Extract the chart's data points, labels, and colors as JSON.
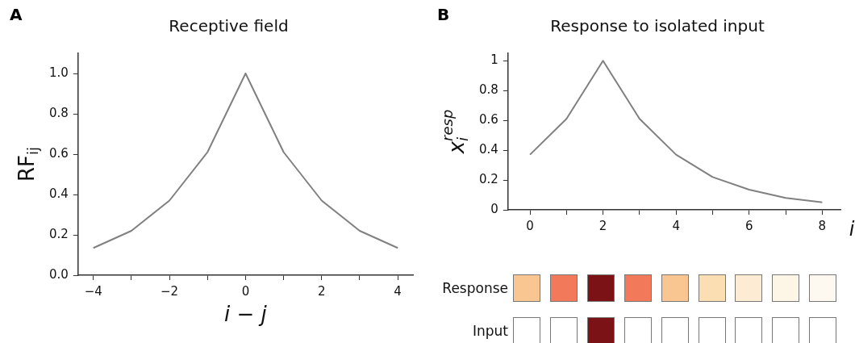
{
  "chart_data": [
    {
      "type": "line",
      "title": "Receptive field",
      "xlabel": "i − j",
      "ylabel": "RF$_{ij}$",
      "annotations": [
        "A"
      ],
      "x": [
        -4,
        -3,
        -2,
        -1,
        0,
        1,
        2,
        3,
        4
      ],
      "series": [
        {
          "color": "#808080",
          "values": [
            0.135,
            0.22,
            0.37,
            0.61,
            1.0,
            0.61,
            0.37,
            0.22,
            0.135
          ]
        }
      ],
      "xlim": [
        -4.4,
        4.4
      ],
      "xticks": [
        {
          "value": -4,
          "label": "−4"
        },
        {
          "value": -3,
          "label": null
        },
        {
          "value": -2,
          "label": "−2"
        },
        {
          "value": -1,
          "label": null
        },
        0,
        {
          "value": 1,
          "label": null
        },
        2,
        {
          "value": 3,
          "label": null
        },
        4
      ],
      "ylim": [
        0,
        1.1
      ],
      "yticks": [
        {
          "value": 0,
          "label": "0.0"
        },
        0.2,
        0.4,
        0.6,
        0.8,
        {
          "value": 1,
          "label": "1.0"
        }
      ],
      "grid": false,
      "marker": "none"
    },
    {
      "type": "line",
      "title": "Response to isolated input",
      "xlabel": "i",
      "ylabel": "x$_{i}$$^{resp}$",
      "annotations": [
        "B"
      ],
      "x": [
        0,
        1,
        2,
        3,
        4,
        5,
        6,
        7,
        8
      ],
      "series": [
        {
          "color": "#808080",
          "values": [
            0.37,
            0.61,
            1.0,
            0.61,
            0.37,
            0.22,
            0.135,
            0.08,
            0.05
          ]
        }
      ],
      "xlim": [
        -0.6,
        8.5
      ],
      "xticks": [
        0,
        {
          "value": 1,
          "label": null
        },
        2,
        {
          "value": 3,
          "label": null
        },
        4,
        {
          "value": 5,
          "label": null
        },
        6,
        {
          "value": 7,
          "label": null
        },
        8
      ],
      "ylim": [
        0,
        1.05
      ],
      "yticks": [
        0,
        0.2,
        0.4,
        0.6,
        0.8,
        1
      ],
      "grid": false,
      "marker": "none"
    },
    {
      "type": "other",
      "annotations": [
        "Response",
        "Input"
      ]
    }
  ]
}
